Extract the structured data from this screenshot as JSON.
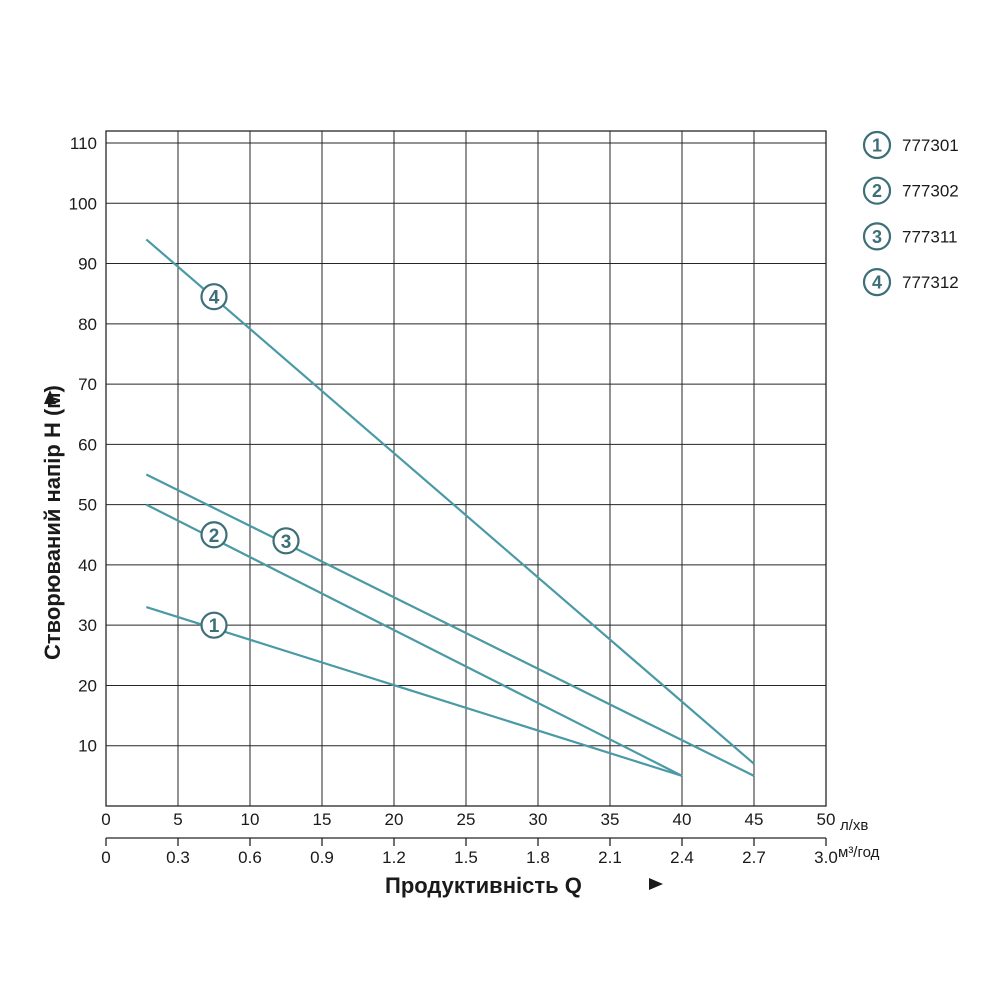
{
  "colors": {
    "curve": "#4a9aa6",
    "marker": "#3d6f79",
    "grid": "#262626"
  },
  "chart_data": {
    "type": "line",
    "ylabel": "Створюваний напір H (м)",
    "xlabel": "Продуктивність Q",
    "x_unit_primary": "л/хв",
    "x_unit_secondary": "м³/год",
    "xlim": [
      0,
      50
    ],
    "ylim": [
      0,
      110
    ],
    "x_ticks_primary": [
      "0",
      "5",
      "10",
      "15",
      "20",
      "25",
      "30",
      "35",
      "40",
      "45",
      "50"
    ],
    "x_ticks_secondary": [
      "0",
      "0.3",
      "0.6",
      "0.9",
      "1.2",
      "1.5",
      "1.8",
      "2.1",
      "2.4",
      "2.7",
      "3.0"
    ],
    "y_ticks": [
      "10",
      "20",
      "30",
      "40",
      "50",
      "60",
      "70",
      "80",
      "90",
      "100",
      "110"
    ],
    "grid": true,
    "legend_position": "top-right",
    "series": [
      {
        "name": "777301",
        "label": "1",
        "x": [
          2.8,
          40
        ],
        "y": [
          33,
          5
        ],
        "marker_at": [
          7.5,
          30
        ]
      },
      {
        "name": "777302",
        "label": "2",
        "x": [
          2.8,
          40
        ],
        "y": [
          50,
          5
        ],
        "marker_at": [
          7.5,
          45
        ]
      },
      {
        "name": "777311",
        "label": "3",
        "x": [
          2.8,
          45
        ],
        "y": [
          55,
          5
        ],
        "marker_at": [
          12.5,
          44
        ]
      },
      {
        "name": "777312",
        "label": "4",
        "x": [
          2.8,
          45
        ],
        "y": [
          94,
          7
        ],
        "marker_at": [
          7.5,
          84.5
        ]
      }
    ]
  }
}
